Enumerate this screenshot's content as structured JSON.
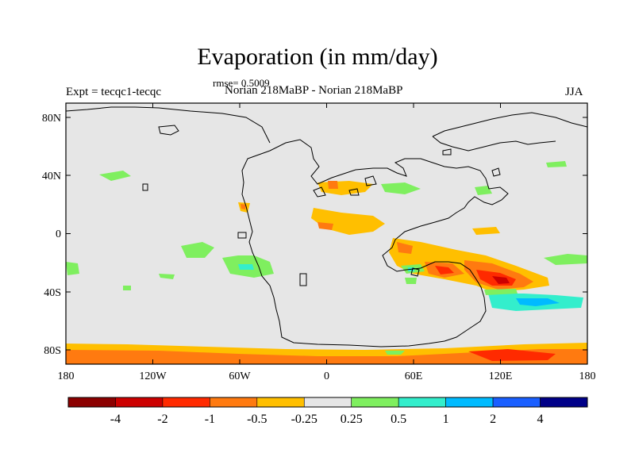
{
  "title": "Evaporation (in mm/day)",
  "rmse_label": "rmse= 0.5009",
  "left_label": "Expt = tecqc1-tecqc",
  "center_label": "Norian 218MaBP - Norian 218MaBP",
  "right_label": "JJA",
  "map": {
    "lon_range": [
      -180,
      180
    ],
    "lat_range": [
      -90,
      90
    ],
    "background_color": "#e6e6e6",
    "lon_ticks": [
      "180",
      "120W",
      "60W",
      "0",
      "60E",
      "120E",
      "180"
    ],
    "lat_ticks": [
      "80N",
      "40N",
      "0",
      "40S",
      "80S"
    ]
  },
  "colorbar": {
    "colors": [
      "#8b0000",
      "#cc0000",
      "#ff2a00",
      "#ff7a10",
      "#ffbf00",
      "#e6e6e6",
      "#7fef5f",
      "#33eecc",
      "#00bbff",
      "#1a5fff",
      "#000088"
    ],
    "labels": [
      "-4",
      "-2",
      "-1",
      "-0.5",
      "-0.25",
      "0.25",
      "0.5",
      "1",
      "2",
      "4"
    ]
  }
}
